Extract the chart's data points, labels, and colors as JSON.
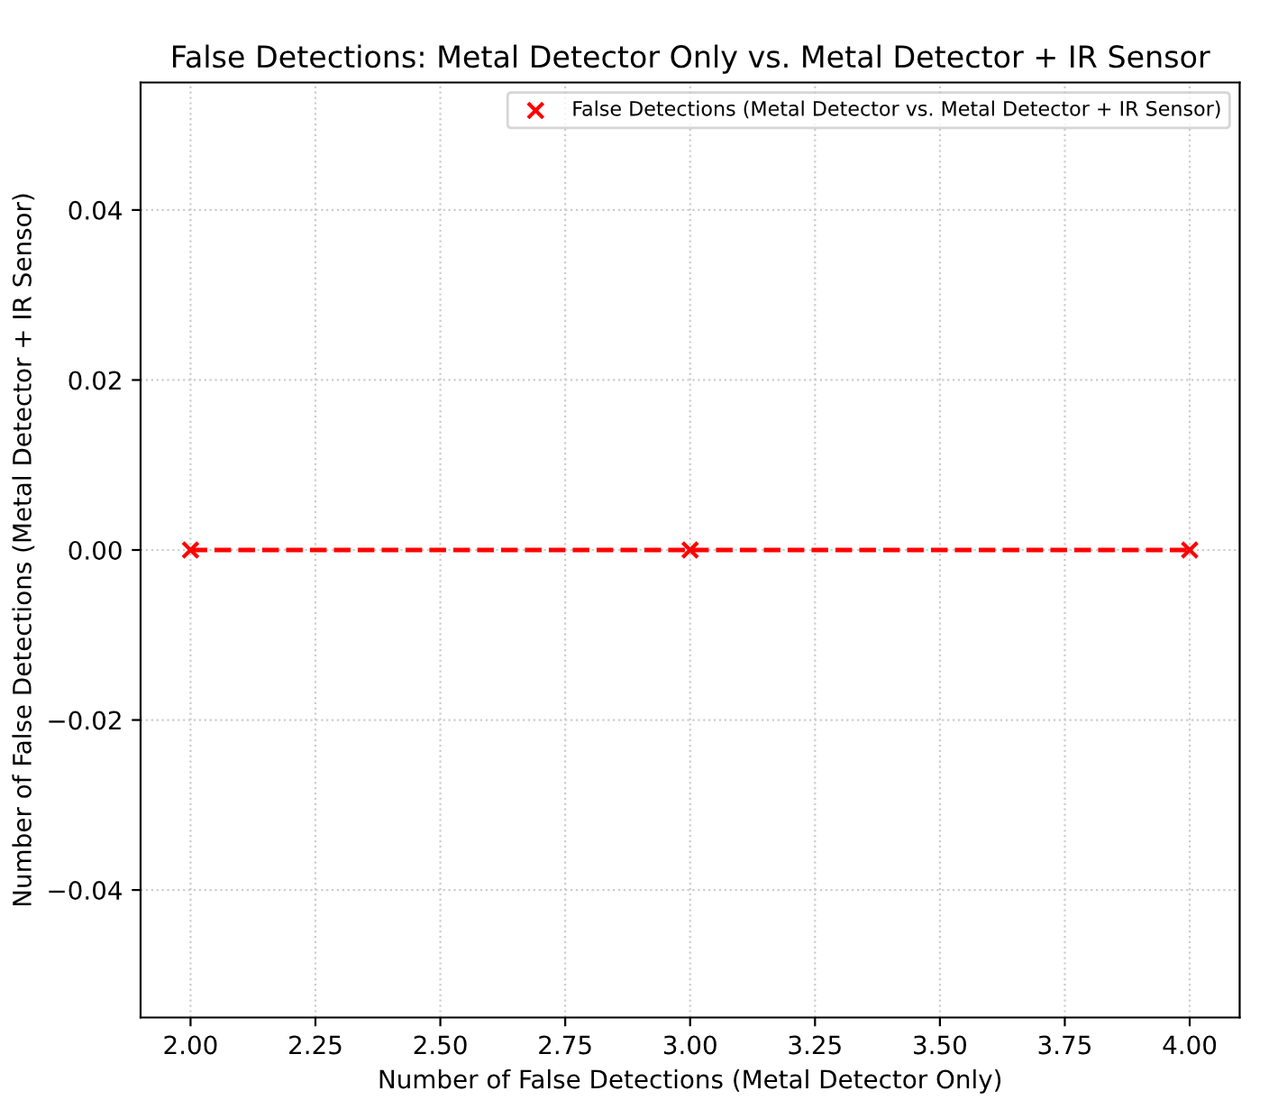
{
  "chart_data": {
    "type": "scatter",
    "title": "False Detections: Metal Detector Only vs. Metal Detector + IR Sensor",
    "xlabel": "Number of False Detections (Metal Detector Only)",
    "ylabel": "Number of False Detections (Metal Detector + IR Sensor)",
    "x": [
      2,
      3,
      4
    ],
    "series": [
      {
        "type": "line",
        "color": "#ff0000",
        "values": [
          0,
          0,
          0
        ],
        "line_style": "dashed",
        "marker": "none"
      },
      {
        "name": "False Detections (Metal Detector vs. Metal Detector + IR Sensor)",
        "color": "#ff0000",
        "values": [
          0,
          0,
          0
        ],
        "marker": "cross"
      }
    ],
    "xlim": [
      1.9,
      4.1
    ],
    "xticks": [
      {
        "value": 2,
        "label": "2.00"
      },
      {
        "value": 2.25,
        "label": "2.25"
      },
      {
        "value": 2.5,
        "label": "2.50"
      },
      {
        "value": 2.75,
        "label": "2.75"
      },
      {
        "value": 3,
        "label": "3.00"
      },
      {
        "value": 3.25,
        "label": "3.25"
      },
      {
        "value": 3.5,
        "label": "3.50"
      },
      {
        "value": 3.75,
        "label": "3.75"
      },
      {
        "value": 4,
        "label": "4.00"
      }
    ],
    "ylim": [
      -0.055,
      0.055
    ],
    "yticks": [
      {
        "value": -0.04,
        "label": "−0.04"
      },
      {
        "value": -0.02,
        "label": "−0.02"
      },
      {
        "value": 0,
        "label": "0.00"
      },
      {
        "value": 0.02,
        "label": "0.02"
      },
      {
        "value": 0.04,
        "label": "0.04"
      }
    ],
    "grid": true,
    "legend": "top right"
  }
}
